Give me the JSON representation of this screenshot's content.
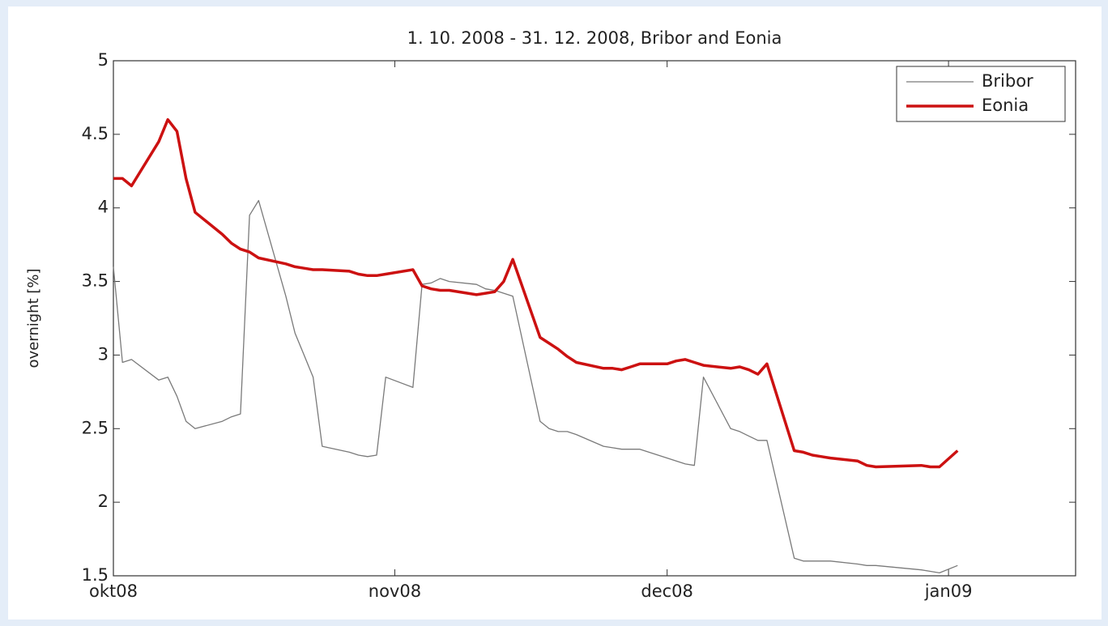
{
  "chart_data": {
    "type": "line",
    "title": "1. 10. 2008 - 31. 12. 2008, Bribor and Eonia",
    "y_label": "overnight [%]",
    "x": [
      0,
      1,
      2,
      5,
      6,
      7,
      8,
      9,
      12,
      13,
      14,
      15,
      16,
      19,
      20,
      21,
      22,
      23,
      26,
      27,
      28,
      29,
      30,
      33,
      34,
      35,
      36,
      37,
      40,
      41,
      42,
      43,
      44,
      47,
      48,
      49,
      50,
      51,
      54,
      55,
      56,
      57,
      58,
      61,
      62,
      63,
      64,
      65,
      68,
      69,
      70,
      71,
      72,
      75,
      76,
      77,
      78,
      79,
      82,
      83,
      84,
      89,
      90,
      91,
      93
    ],
    "xlim": [
      0,
      106
    ],
    "xticks": [
      {
        "value": 0,
        "label": "okt08"
      },
      {
        "value": 31,
        "label": "nov08"
      },
      {
        "value": 61,
        "label": "dec08"
      },
      {
        "value": 92,
        "label": "jan09"
      }
    ],
    "ylim": [
      1.5,
      5
    ],
    "yticks": [
      1.5,
      2,
      2.5,
      3,
      3.5,
      4,
      4.5,
      5
    ],
    "grid": false,
    "legend": "upper right",
    "series": [
      {
        "name": "Bribor",
        "color": "#7a7a7a",
        "width": 1.3,
        "values": [
          3.6,
          2.95,
          2.97,
          2.83,
          2.85,
          2.72,
          2.55,
          2.5,
          2.55,
          2.58,
          2.6,
          3.95,
          4.05,
          3.4,
          3.15,
          3.0,
          2.85,
          2.38,
          2.34,
          2.32,
          2.31,
          2.32,
          2.85,
          2.78,
          3.48,
          3.49,
          3.52,
          3.5,
          3.48,
          3.45,
          3.44,
          3.42,
          3.4,
          2.55,
          2.5,
          2.48,
          2.48,
          2.46,
          2.38,
          2.37,
          2.36,
          2.36,
          2.36,
          2.3,
          2.28,
          2.26,
          2.25,
          2.85,
          2.5,
          2.48,
          2.45,
          2.42,
          2.42,
          1.62,
          1.6,
          1.6,
          1.6,
          1.6,
          1.58,
          1.57,
          1.57,
          1.54,
          1.53,
          1.52,
          1.57
        ]
      },
      {
        "name": "Eonia",
        "color": "#cc1111",
        "width": 3.5,
        "values": [
          4.2,
          4.2,
          4.15,
          4.45,
          4.6,
          4.52,
          4.2,
          3.97,
          3.82,
          3.76,
          3.72,
          3.7,
          3.66,
          3.62,
          3.6,
          3.59,
          3.58,
          3.58,
          3.57,
          3.55,
          3.54,
          3.54,
          3.55,
          3.58,
          3.47,
          3.45,
          3.44,
          3.44,
          3.41,
          3.42,
          3.43,
          3.5,
          3.65,
          3.12,
          3.08,
          3.04,
          2.99,
          2.95,
          2.91,
          2.91,
          2.9,
          2.92,
          2.94,
          2.94,
          2.96,
          2.97,
          2.95,
          2.93,
          2.91,
          2.92,
          2.9,
          2.87,
          2.94,
          2.35,
          2.34,
          2.32,
          2.31,
          2.3,
          2.28,
          2.25,
          2.24,
          2.25,
          2.24,
          2.24,
          2.35
        ]
      }
    ]
  }
}
